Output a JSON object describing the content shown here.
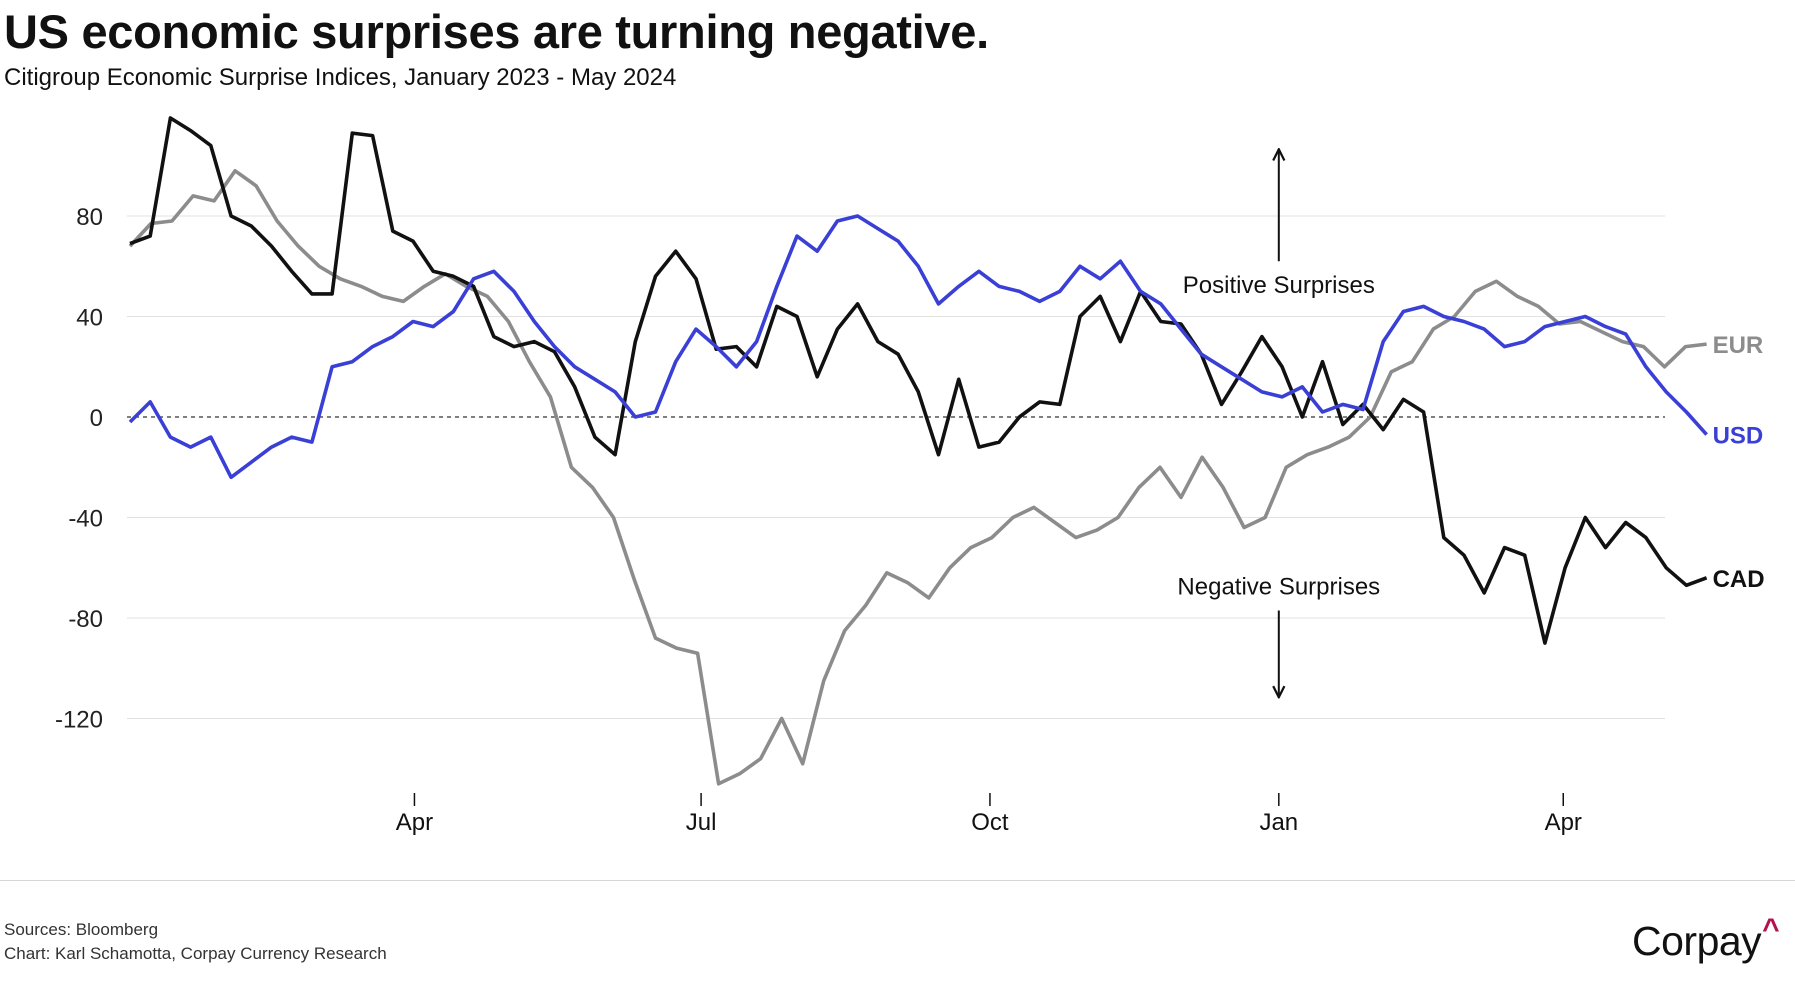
{
  "header": {
    "title": "US economic surprises are turning negative.",
    "subtitle_main": "Citigroup Economic Surprise Indices,",
    "subtitle_range": " January 2023 - May 2024"
  },
  "footer": {
    "sources": "Sources: Bloomberg",
    "credit": "Chart: Karl Schamotta, Corpay Currency Research"
  },
  "logo": {
    "text": "Corpay",
    "mark": "^",
    "mark_color": "#b3124e"
  },
  "chart_data": {
    "type": "line",
    "title": "US economic surprises are turning negative.",
    "subtitle": "Citigroup Economic Surprise Indices, January 2023 - May 2024",
    "xlabel": "",
    "ylabel": "",
    "x_unit": "weeks since 2023-01-02",
    "x_ticks": [
      {
        "label": "Apr",
        "week": 12.9
      },
      {
        "label": "Jul",
        "week": 25.9
      },
      {
        "label": "Oct",
        "week": 39.0
      },
      {
        "label": "Jan",
        "week": 52.1
      },
      {
        "label": "Apr",
        "week": 65.0
      }
    ],
    "y_ticks": [
      80,
      40,
      0,
      -40,
      -80,
      -120
    ],
    "ylim": [
      -150,
      122
    ],
    "xlim": [
      0,
      71.5
    ],
    "grid": true,
    "zero_line": "dashed",
    "annotations": [
      {
        "text": "Positive Surprises",
        "direction": "up",
        "week": 52.1,
        "value_from": 62,
        "value_to": 106
      },
      {
        "text": "Negative Surprises",
        "direction": "down",
        "week": 52.1,
        "value_from": -77,
        "value_to": -111
      }
    ],
    "legend": "inline labels at line ends (right)",
    "series": [
      {
        "name": "CAD",
        "color": "#111111",
        "values": [
          69,
          72,
          119,
          114,
          108,
          80,
          76,
          68,
          58,
          49,
          49,
          113,
          112,
          74,
          70,
          58,
          56,
          52,
          32,
          28,
          30,
          26,
          12,
          -8,
          -15,
          30,
          56,
          66,
          55,
          27,
          28,
          20,
          44,
          40,
          16,
          35,
          45,
          30,
          25,
          10,
          -15,
          15,
          -12,
          -10,
          0,
          6,
          5,
          40,
          48,
          30,
          50,
          38,
          37,
          25,
          5,
          18,
          32,
          20,
          0,
          22,
          -3,
          5,
          -5,
          7,
          2,
          -48,
          -55,
          -70,
          -52,
          -55,
          -90,
          -60,
          -40,
          -52,
          -42,
          -48,
          -60,
          -67,
          -64
        ]
      },
      {
        "name": "EUR",
        "color": "#8c8c8c",
        "values": [
          68,
          77,
          78,
          88,
          86,
          98,
          92,
          78,
          68,
          60,
          55,
          52,
          48,
          46,
          52,
          57,
          52,
          48,
          38,
          22,
          8,
          -20,
          -28,
          -40,
          -65,
          -88,
          -92,
          -94,
          -146,
          -142,
          -136,
          -120,
          -138,
          -105,
          -85,
          -75,
          -62,
          -66,
          -72,
          -60,
          -52,
          -48,
          -40,
          -36,
          -42,
          -48,
          -45,
          -40,
          -28,
          -20,
          -32,
          -16,
          -28,
          -44,
          -40,
          -20,
          -15,
          -12,
          -8,
          0,
          18,
          22,
          35,
          40,
          50,
          54,
          48,
          44,
          37,
          38,
          34,
          30,
          28,
          20,
          28,
          29
        ]
      },
      {
        "name": "USD",
        "color": "#3a3fd6",
        "values": [
          -2,
          6,
          -8,
          -12,
          -8,
          -24,
          -18,
          -12,
          -8,
          -10,
          20,
          22,
          28,
          32,
          38,
          36,
          42,
          55,
          58,
          50,
          38,
          28,
          20,
          15,
          10,
          0,
          2,
          22,
          35,
          28,
          20,
          30,
          52,
          72,
          66,
          78,
          80,
          75,
          70,
          60,
          45,
          52,
          58,
          52,
          50,
          46,
          50,
          60,
          55,
          62,
          50,
          45,
          35,
          25,
          20,
          15,
          10,
          8,
          12,
          2,
          5,
          3,
          30,
          42,
          44,
          40,
          38,
          35,
          28,
          30,
          36,
          38,
          40,
          36,
          33,
          20,
          10,
          2,
          -7
        ]
      }
    ]
  }
}
